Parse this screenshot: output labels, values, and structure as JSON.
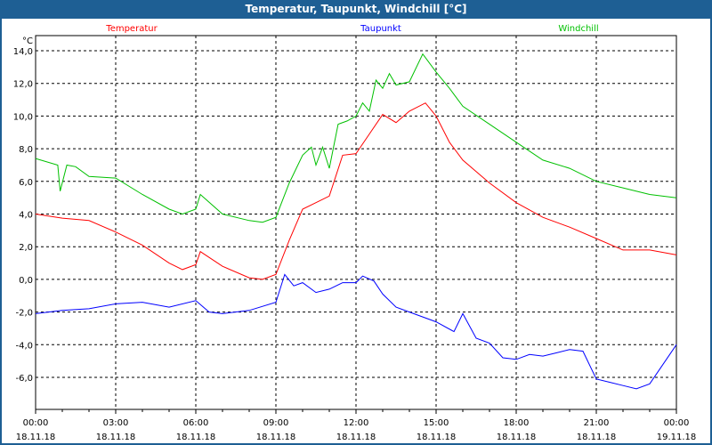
{
  "chart_data": {
    "type": "line",
    "title": "Temperatur, Taupunkt, Windchill [°C]",
    "ylabel": "°C",
    "ylim": [
      -8,
      15
    ],
    "xlim": [
      0,
      24
    ],
    "grid": true,
    "legend_placement": "top",
    "yticks": [
      14,
      12,
      10,
      8,
      6,
      4,
      2,
      0,
      -2,
      -4,
      -6
    ],
    "ytick_labels": [
      "14,0",
      "12,0",
      "10,0",
      "8,0",
      "6,0",
      "4,0",
      "2,0",
      "0,0",
      "-2,0",
      "-4,0",
      "-6,0"
    ],
    "xticks": [
      0,
      3,
      6,
      9,
      12,
      15,
      18,
      21,
      24
    ],
    "xtick_labels": [
      [
        "00:00",
        "18.11.18"
      ],
      [
        "03:00",
        "18.11.18"
      ],
      [
        "06:00",
        "18.11.18"
      ],
      [
        "09:00",
        "18.11.18"
      ],
      [
        "12:00",
        "18.11.18"
      ],
      [
        "15:00",
        "18.11.18"
      ],
      [
        "18:00",
        "18.11.18"
      ],
      [
        "21:00",
        "18.11.18"
      ],
      [
        "00:00",
        "19.11.18"
      ]
    ],
    "series": [
      {
        "name": "Temperatur",
        "color": "#ff0000",
        "legend": "left",
        "x": [
          0,
          1,
          2,
          3,
          4,
          5,
          5.5,
          6,
          6.17,
          7,
          8,
          8.5,
          9,
          9.5,
          10,
          10.5,
          11,
          11.5,
          12,
          12.5,
          13,
          13.5,
          14,
          14.6,
          15,
          15.5,
          16,
          17,
          18,
          19,
          20,
          21,
          22,
          23,
          24
        ],
        "y": [
          4.0,
          3.75,
          3.6,
          2.9,
          2.1,
          1.0,
          0.6,
          0.9,
          1.7,
          0.8,
          0.1,
          0.0,
          0.3,
          2.4,
          4.3,
          4.7,
          5.1,
          7.6,
          7.7,
          8.9,
          10.1,
          9.6,
          10.3,
          10.8,
          10.0,
          8.4,
          7.3,
          5.9,
          4.7,
          3.8,
          3.2,
          2.5,
          1.8,
          1.8,
          1.5
        ]
      },
      {
        "name": "Taupunkt",
        "color": "#0000ff",
        "legend": "center",
        "x": [
          0,
          1,
          2,
          3,
          4,
          5,
          6,
          6.5,
          7,
          8,
          9,
          9.33,
          9.67,
          10,
          10.5,
          11,
          11.5,
          12,
          12.25,
          12.67,
          13,
          13.5,
          14,
          15,
          15.67,
          16,
          16.5,
          17,
          17.5,
          18,
          18.5,
          19,
          19.5,
          20,
          20.5,
          21,
          21.5,
          22,
          22.5,
          23,
          23.5,
          24
        ],
        "y": [
          -2.1,
          -1.9,
          -1.8,
          -1.5,
          -1.4,
          -1.7,
          -1.3,
          -2.0,
          -2.1,
          -1.9,
          -1.4,
          0.3,
          -0.4,
          -0.2,
          -0.8,
          -0.6,
          -0.2,
          -0.2,
          0.2,
          -0.1,
          -0.9,
          -1.7,
          -2.0,
          -2.6,
          -3.2,
          -2.1,
          -3.6,
          -3.9,
          -4.8,
          -4.9,
          -4.6,
          -4.7,
          -4.5,
          -4.3,
          -4.4,
          -6.1,
          -6.3,
          -6.5,
          -6.7,
          -6.4,
          -5.2,
          -4.0
        ]
      },
      {
        "name": "Windchill",
        "color": "#00c000",
        "legend": "right",
        "x": [
          0,
          0.83,
          0.92,
          1.17,
          1.5,
          2,
          3,
          4,
          5,
          5.5,
          6,
          6.17,
          7,
          8,
          8.5,
          9,
          9.5,
          10,
          10.33,
          10.5,
          10.75,
          11,
          11.33,
          11.67,
          12,
          12.25,
          12.5,
          12.75,
          13,
          13.25,
          13.5,
          14,
          14.5,
          15,
          15.5,
          16,
          17,
          18,
          19,
          20,
          21,
          22,
          23,
          24
        ],
        "y": [
          7.4,
          7.0,
          5.4,
          7.0,
          6.9,
          6.3,
          6.2,
          5.2,
          4.3,
          4.0,
          4.3,
          5.2,
          4.0,
          3.6,
          3.5,
          3.8,
          5.9,
          7.6,
          8.1,
          7.0,
          8.1,
          6.8,
          9.5,
          9.7,
          10.0,
          10.8,
          10.3,
          12.2,
          11.7,
          12.6,
          11.9,
          12.1,
          13.8,
          12.7,
          11.7,
          10.6,
          9.5,
          8.4,
          7.3,
          6.8,
          6.0,
          5.6,
          5.2,
          5.0
        ]
      }
    ]
  }
}
